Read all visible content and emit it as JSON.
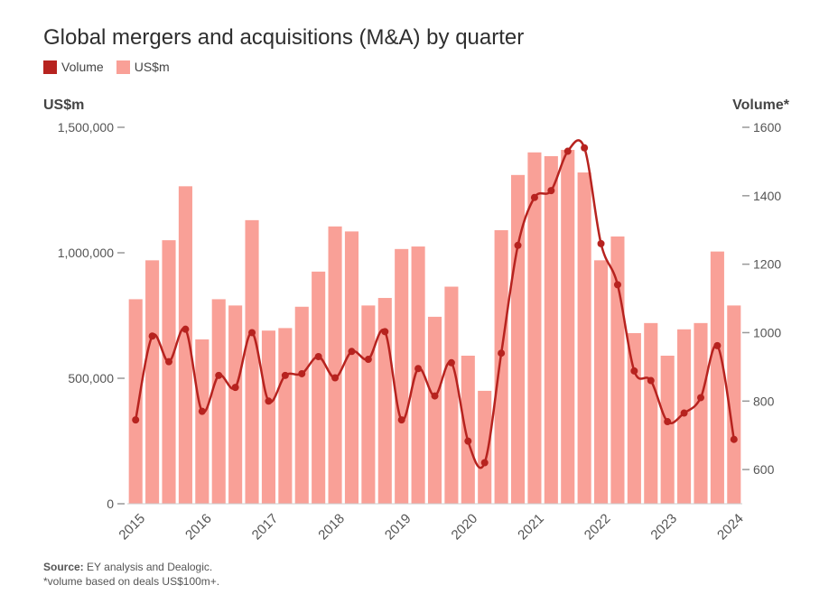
{
  "title": "Global mergers and acquisitions (M&A) by quarter",
  "legend": [
    {
      "label": "Volume",
      "color": "#b7231f"
    },
    {
      "label": "US$m",
      "color": "#f9a097"
    }
  ],
  "axis": {
    "left_title": "US$m",
    "right_title": "Volume*"
  },
  "footer": {
    "source_label": "Source:",
    "source_text": " EY analysis and Dealogic.",
    "note": "*volume based on deals US$100m+."
  },
  "chart_data": {
    "type": "bar",
    "title": "Global mergers and acquisitions (M&A) by quarter",
    "colors": {
      "bar": "#f9a097",
      "line": "#b7231f",
      "axis": "#999999",
      "text": "#555555"
    },
    "x_tick_labels": [
      "2015",
      "2016",
      "2017",
      "2018",
      "2019",
      "2020",
      "2021",
      "2022",
      "2023",
      "2024"
    ],
    "left_axis": {
      "label": "US$m",
      "ylim": [
        0,
        1500000
      ],
      "ticks": [
        0,
        500000,
        1000000,
        1500000
      ],
      "tick_labels": [
        "0",
        "500,000",
        "1,000,000",
        "1,500,000"
      ]
    },
    "right_axis": {
      "label": "Volume*",
      "ylim": [
        500,
        1600
      ],
      "ticks": [
        600,
        800,
        1000,
        1200,
        1400,
        1600
      ],
      "tick_labels": [
        "600",
        "800",
        "1000",
        "1200",
        "1400",
        "1600"
      ]
    },
    "categories": [
      "2015 Q1",
      "2015 Q2",
      "2015 Q3",
      "2015 Q4",
      "2016 Q1",
      "2016 Q2",
      "2016 Q3",
      "2016 Q4",
      "2017 Q1",
      "2017 Q2",
      "2017 Q3",
      "2017 Q4",
      "2018 Q1",
      "2018 Q2",
      "2018 Q3",
      "2018 Q4",
      "2019 Q1",
      "2019 Q2",
      "2019 Q3",
      "2019 Q4",
      "2020 Q1",
      "2020 Q2",
      "2020 Q3",
      "2020 Q4",
      "2021 Q1",
      "2021 Q2",
      "2021 Q3",
      "2021 Q4",
      "2022 Q1",
      "2022 Q2",
      "2022 Q3",
      "2022 Q4",
      "2023 Q1",
      "2023 Q2",
      "2023 Q3",
      "2023 Q4",
      "2024 Q1"
    ],
    "series": [
      {
        "name": "US$m",
        "type": "bar",
        "axis": "left",
        "values": [
          815000,
          970000,
          1050000,
          1265000,
          655000,
          815000,
          790000,
          1130000,
          690000,
          700000,
          785000,
          925000,
          1105000,
          1085000,
          790000,
          820000,
          1015000,
          1025000,
          745000,
          865000,
          590000,
          450000,
          1090000,
          1310000,
          1400000,
          1385000,
          1410000,
          1320000,
          970000,
          1065000,
          680000,
          720000,
          590000,
          695000,
          720000,
          1005000,
          790000
        ]
      },
      {
        "name": "Volume",
        "type": "line",
        "axis": "right",
        "values": [
          745,
          990,
          915,
          1010,
          770,
          875,
          840,
          1000,
          800,
          875,
          880,
          930,
          868,
          945,
          922,
          1003,
          745,
          895,
          815,
          912,
          683,
          620,
          940,
          1255,
          1395,
          1415,
          1530,
          1540,
          1260,
          1140,
          888,
          860,
          740,
          765,
          810,
          962,
          688
        ]
      }
    ]
  }
}
